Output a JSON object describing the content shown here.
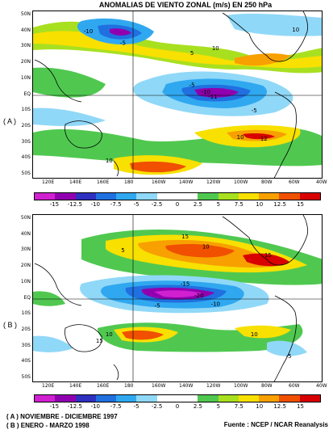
{
  "title": "ANOMALIAS DE VIENTO ZONAL (m/s) EN 250 hPa",
  "panels": [
    {
      "label": "( A )",
      "period": "( A ) NOVIEMBRE - DICIEMBRE 1997"
    },
    {
      "label": "( B )",
      "period": "( B ) ENERO - MARZO 1998"
    }
  ],
  "source": "Fuente : NCEP / NCAR Reanalysis",
  "latitudes": [
    "50N",
    "40N",
    "30N",
    "20N",
    "10N",
    "EQ",
    "10S",
    "20S",
    "30S",
    "40S",
    "50S"
  ],
  "longitudes": [
    "120E",
    "140E",
    "160E",
    "180",
    "160W",
    "140W",
    "120W",
    "100W",
    "80W",
    "60W",
    "40W"
  ],
  "colorbar": {
    "ticks": [
      "-15",
      "-12.5",
      "-10",
      "-7.5",
      "-5",
      "-2.5",
      "0",
      "2.5",
      "5",
      "7.5",
      "10",
      "12.5",
      "15"
    ],
    "colors": [
      "#d020d0",
      "#9000b0",
      "#3030c0",
      "#2070e0",
      "#30a8f0",
      "#90d8f8",
      "#ffffff",
      "#ffffff",
      "#50c850",
      "#a8e020",
      "#f8e000",
      "#f8a000",
      "#f05000",
      "#d80000"
    ]
  },
  "contour_labels_a": [
    {
      "text": "-10",
      "lon": 150,
      "lat": 37
    },
    {
      "text": "-5",
      "lon": 175,
      "lat": 30
    },
    {
      "text": "10",
      "lon": -118,
      "lat": 27
    },
    {
      "text": "5",
      "lon": -135,
      "lat": 24
    },
    {
      "text": "-5",
      "lon": -135,
      "lat": 5
    },
    {
      "text": "-10",
      "lon": -125,
      "lat": 1
    },
    {
      "text": "-11",
      "lon": -120,
      "lat": -2
    },
    {
      "text": "-5",
      "lon": -90,
      "lat": -10
    },
    {
      "text": "10",
      "lon": -100,
      "lat": -26
    },
    {
      "text": "12",
      "lon": -83,
      "lat": -27
    },
    {
      "text": "10",
      "lon": 165,
      "lat": -40
    },
    {
      "text": "10",
      "lon": -60,
      "lat": 38
    }
  ],
  "contour_labels_b": [
    {
      "text": "15",
      "lon": -140,
      "lat": 36
    },
    {
      "text": "10",
      "lon": -125,
      "lat": 30
    },
    {
      "text": "5",
      "lon": 175,
      "lat": 28
    },
    {
      "text": "-15",
      "lon": -140,
      "lat": 8
    },
    {
      "text": "-20",
      "lon": -130,
      "lat": 1
    },
    {
      "text": "-10",
      "lon": -118,
      "lat": -4
    },
    {
      "text": "-5",
      "lon": -160,
      "lat": -5
    },
    {
      "text": "10",
      "lon": 165,
      "lat": -22
    },
    {
      "text": "15",
      "lon": 158,
      "lat": -26
    },
    {
      "text": "10",
      "lon": -90,
      "lat": -22
    },
    {
      "text": "-5",
      "lon": -65,
      "lat": -35
    },
    {
      "text": "15",
      "lon": -80,
      "lat": 25
    }
  ]
}
